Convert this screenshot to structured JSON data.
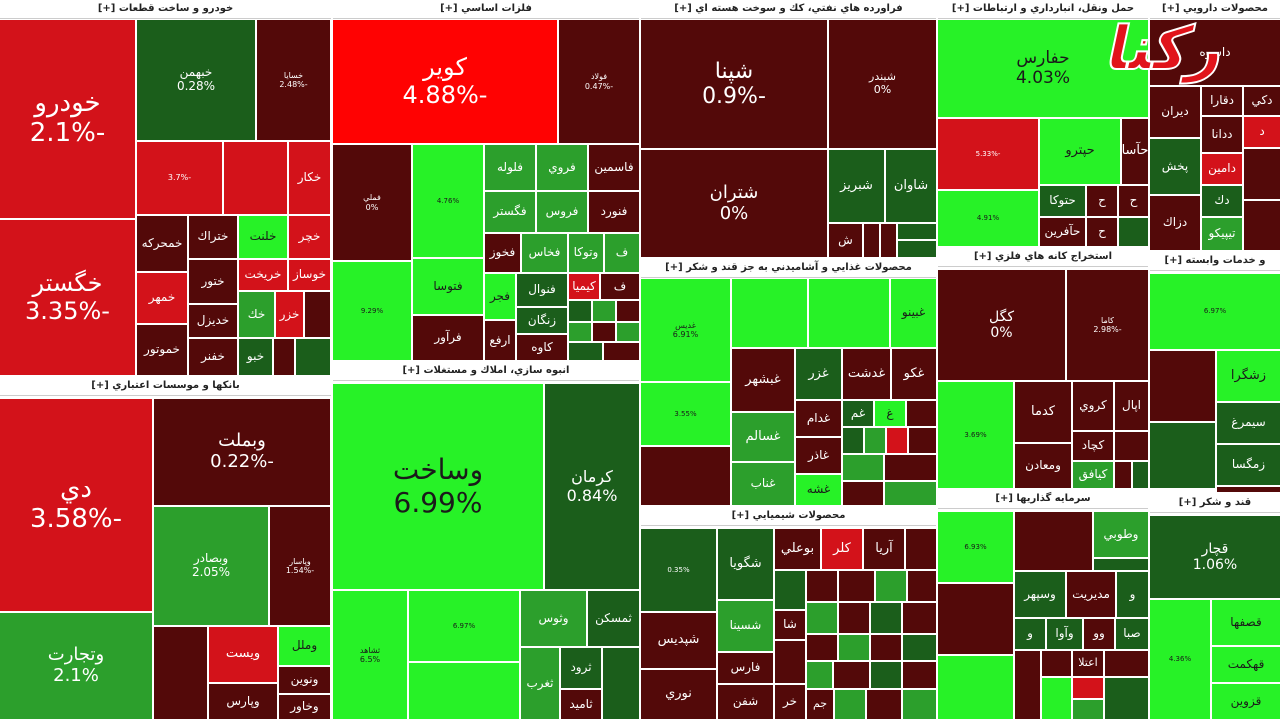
{
  "logo": "رکنا",
  "sectors": [
    {
      "title": "خودرو و ساخت قطعات [+]",
      "tiles": [
        {
          "name": "خودرو",
          "change": "-2.1%"
        },
        {
          "name": "خگستر",
          "change": "-3.35%"
        },
        {
          "name": "خبهمن",
          "change": "0.28%"
        },
        {
          "name": "خسايا",
          "change": "-2.48%"
        },
        {
          "change": "-3.7%"
        },
        {
          "name": "خكار"
        },
        {
          "name": "خمحركه"
        },
        {
          "name": "ختراك"
        },
        {
          "name": "خلنت"
        },
        {
          "name": "خچر"
        },
        {
          "name": "خريخت"
        },
        {
          "name": "خوساز"
        },
        {
          "name": "خمهر"
        },
        {
          "name": "ختور"
        },
        {
          "name": "خديزل"
        },
        {
          "name": "خك"
        },
        {
          "name": "خزر"
        },
        {
          "name": "خموتور"
        },
        {
          "name": "خفنر"
        },
        {
          "name": "خبو"
        }
      ]
    },
    {
      "title": "بانكها و موسسات اعتباري [+]",
      "tiles": [
        {
          "name": "دي",
          "change": "-3.58%"
        },
        {
          "name": "وبملت",
          "change": "-0.22%"
        },
        {
          "name": "وتجارت",
          "change": "2.1%"
        },
        {
          "name": "وبصادر",
          "change": "2.05%"
        },
        {
          "name": "وپاسار",
          "change": "-1.54%"
        },
        {
          "name": "ويست"
        },
        {
          "name": "وملل"
        },
        {
          "name": "ونوين"
        },
        {
          "name": "وپارس"
        },
        {
          "name": "وخاور"
        }
      ]
    },
    {
      "title": "فلزات اساسي [+]",
      "tiles": [
        {
          "name": "كوير",
          "change": "-4.88%"
        },
        {
          "name": "فولاد",
          "change": "-0.47%"
        },
        {
          "name": "فملي",
          "change": "0%"
        },
        {
          "change": "4.76%"
        },
        {
          "name": "فلوله"
        },
        {
          "name": "فروي"
        },
        {
          "name": "فاسمين"
        },
        {
          "name": "فگستر"
        },
        {
          "name": "فروس"
        },
        {
          "name": "فنورد"
        },
        {
          "name": "فخوز"
        },
        {
          "name": "فخاس"
        },
        {
          "name": "وتوكا"
        },
        {
          "name": "ف"
        },
        {
          "change": "9.29%"
        },
        {
          "name": "فتوسا"
        },
        {
          "name": "فرآور"
        },
        {
          "name": "فجر"
        },
        {
          "name": "فنوال"
        },
        {
          "name": "كيميا"
        },
        {
          "name": "ف"
        },
        {
          "name": "ارفع"
        },
        {
          "name": "زنگان"
        },
        {
          "name": "كاوه"
        }
      ]
    },
    {
      "title": "انبوه سازي، املاك و مستغلات [+]",
      "tiles": [
        {
          "name": "وساخت",
          "change": "6.99%"
        },
        {
          "name": "كرمان",
          "change": "0.84%"
        },
        {
          "name": "ثشاهد",
          "change": "6.5%"
        },
        {
          "change": "6.97%"
        },
        {
          "name": "وثوس"
        },
        {
          "name": "ثمسكن"
        },
        {
          "name": "ثغرب"
        },
        {
          "name": "ثرود"
        },
        {
          "name": "ثاميد"
        }
      ]
    },
    {
      "title": "فراورده هاي نفتي، كك و سوخت هسته اي [+]",
      "tiles": [
        {
          "name": "شپنا",
          "change": "-0.9%"
        },
        {
          "name": "شبندر",
          "change": "0%"
        },
        {
          "name": "شتران",
          "change": "0%"
        },
        {
          "name": "شبريز"
        },
        {
          "name": "شاوان"
        },
        {
          "name": "ش"
        }
      ]
    },
    {
      "title": "محصولات غذايي و آشاميدني به جز قند و شكر [+]",
      "tiles": [
        {
          "name": "غديس",
          "change": "6.91%"
        },
        {
          "name": "غبينو"
        },
        {
          "change": "3.55%"
        },
        {
          "name": "غبشهر"
        },
        {
          "name": "غزر"
        },
        {
          "name": "غدشت"
        },
        {
          "name": "غكو"
        },
        {
          "name": "غسالم"
        },
        {
          "name": "غناب"
        },
        {
          "name": "غدام"
        },
        {
          "name": "غم"
        },
        {
          "name": "غ"
        },
        {
          "name": "غاذر"
        },
        {
          "name": "غشه"
        }
      ]
    },
    {
      "title": "محصولات شيميايي [+]",
      "tiles": [
        {
          "change": "0.35%"
        },
        {
          "name": "شگويا"
        },
        {
          "name": "بوعلي"
        },
        {
          "name": "كلر"
        },
        {
          "name": "آريا"
        },
        {
          "name": "شپديس"
        },
        {
          "name": "نوري"
        },
        {
          "name": "شسينا"
        },
        {
          "name": "فارس"
        },
        {
          "name": "شفن"
        },
        {
          "name": "شا"
        },
        {
          "name": "خر"
        },
        {
          "name": "جم"
        }
      ]
    },
    {
      "title": "حمل ونقل، انبارداري و ارتباطات [+]",
      "tiles": [
        {
          "name": "حفارس",
          "change": "4.03%"
        },
        {
          "change": "-5.33%"
        },
        {
          "name": "حپترو"
        },
        {
          "name": "حآسا"
        },
        {
          "change": "4.91%"
        },
        {
          "name": "حتوكا"
        },
        {
          "name": "حآفرين"
        },
        {
          "name": "ح"
        },
        {
          "name": "ح"
        },
        {
          "name": "ح"
        }
      ]
    },
    {
      "title": "استخراج كانه هاي فلزي [+]",
      "tiles": [
        {
          "name": "كگل",
          "change": "0%"
        },
        {
          "name": "كاما",
          "change": "-2.98%"
        },
        {
          "change": "3.69%"
        },
        {
          "name": "كدما"
        },
        {
          "name": "كروي"
        },
        {
          "name": "اپال"
        },
        {
          "name": "ومعادن"
        },
        {
          "name": "كچاد"
        },
        {
          "name": "كيافق"
        }
      ]
    },
    {
      "title": "سرمايه گذاريها [+]",
      "tiles": [
        {
          "change": "6.93%"
        },
        {
          "name": "وطوبي"
        },
        {
          "name": "وسپهر"
        },
        {
          "name": "مديريت"
        },
        {
          "name": "و"
        },
        {
          "name": "و"
        },
        {
          "name": "وآوا"
        },
        {
          "name": "وو"
        },
        {
          "name": "صبا"
        },
        {
          "name": "اعتلا"
        }
      ]
    },
    {
      "title": "محصولات دارويي [+]",
      "tiles": [
        {
          "name": "داسوه"
        },
        {
          "name": "ديران"
        },
        {
          "name": "دقارا"
        },
        {
          "name": "دكي"
        },
        {
          "name": "ددانا"
        },
        {
          "name": "د"
        },
        {
          "name": "پخش"
        },
        {
          "name": "دامين"
        },
        {
          "name": "دك"
        },
        {
          "name": "دزاك"
        },
        {
          "name": "تيپيكو"
        }
      ]
    },
    {
      "title": "و خدمات وابسته [+]",
      "tiles": [
        {
          "change": "6.97%"
        },
        {
          "name": "زشگرا"
        },
        {
          "name": "سيمرغ"
        },
        {
          "name": "زمگسا"
        }
      ]
    },
    {
      "title": "قند و شكر [+]",
      "tiles": [
        {
          "name": "قچار",
          "change": "1.06%"
        },
        {
          "change": "4.36%"
        },
        {
          "name": "قصفها"
        },
        {
          "name": "قهكمت"
        },
        {
          "name": "قزوين"
        }
      ]
    }
  ]
}
